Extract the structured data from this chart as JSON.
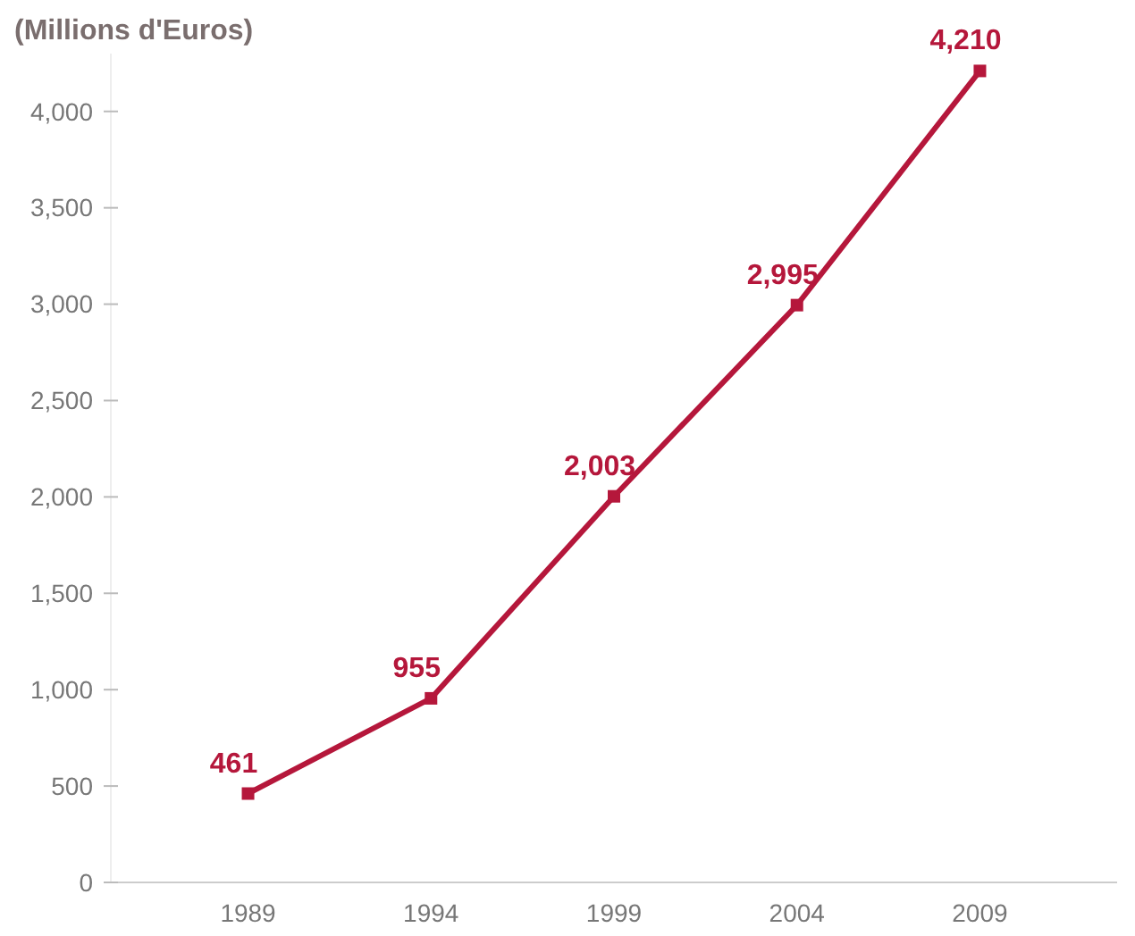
{
  "chart_data": {
    "type": "line",
    "title": "(Millions d'Euros)",
    "categories": [
      "1989",
      "1994",
      "1999",
      "2004",
      "2009"
    ],
    "series": [
      {
        "color": "#b5173b",
        "values": [
          461,
          955,
          2003,
          2995,
          4210
        ],
        "value_labels": [
          "461",
          "955",
          "2,003",
          "2,995",
          "4,210"
        ]
      }
    ],
    "ylim": [
      0,
      4300
    ],
    "yticks": [
      0,
      500,
      {
        "value": 1000,
        "label": "1,000"
      },
      {
        "value": 1500,
        "label": "1,500"
      },
      {
        "value": 2000,
        "label": "2,000"
      },
      {
        "value": 2500,
        "label": "2,500"
      },
      {
        "value": 3000,
        "label": "3,000"
      },
      {
        "value": 3500,
        "label": "3,500"
      },
      {
        "value": 4000,
        "label": "4,000"
      }
    ],
    "grid": false,
    "marker": "square",
    "line_style": "solid"
  }
}
